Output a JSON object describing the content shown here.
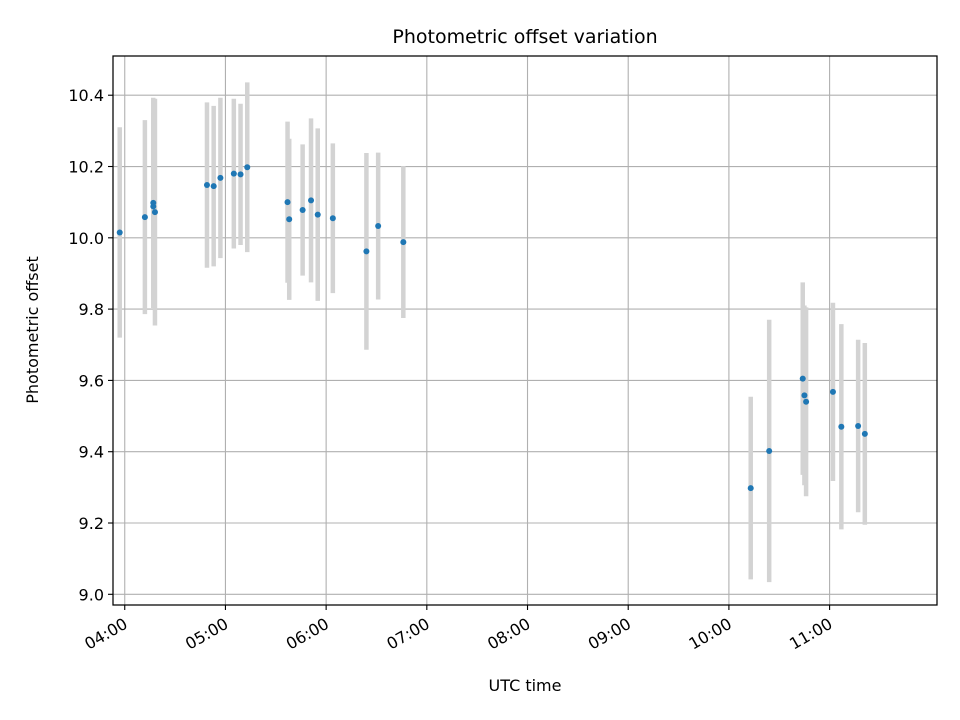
{
  "chart_data": {
    "type": "scatter",
    "title": "Photometric offset variation",
    "xlabel": "UTC time",
    "ylabel": "Photometric offset",
    "x_ticks": [
      "04:00",
      "05:00",
      "06:00",
      "07:00",
      "08:00",
      "09:00",
      "10:00",
      "11:00"
    ],
    "y_ticks": [
      "9.0",
      "9.2",
      "9.4",
      "9.6",
      "9.8",
      "10.0",
      "10.2",
      "10.4"
    ],
    "xlim": [
      "03:53",
      "12:04"
    ],
    "ylim": [
      8.97,
      10.51
    ],
    "grid": true,
    "marker_color": "#1f77b4",
    "errorbar_color": "#d3d3d3",
    "points": [
      {
        "x": "03:57",
        "y": 10.015,
        "err": 0.295
      },
      {
        "x": "04:12",
        "y": 10.058,
        "err": 0.272
      },
      {
        "x": "04:17",
        "y": 10.098,
        "err": 0.295
      },
      {
        "x": "04:17",
        "y": 10.088,
        "err": 0.262
      },
      {
        "x": "04:18",
        "y": 10.072,
        "err": 0.318
      },
      {
        "x": "04:49",
        "y": 10.148,
        "err": 0.232
      },
      {
        "x": "04:53",
        "y": 10.145,
        "err": 0.225
      },
      {
        "x": "04:57",
        "y": 10.168,
        "err": 0.225
      },
      {
        "x": "05:05",
        "y": 10.18,
        "err": 0.21
      },
      {
        "x": "05:09",
        "y": 10.178,
        "err": 0.198
      },
      {
        "x": "05:13",
        "y": 10.198,
        "err": 0.238
      },
      {
        "x": "05:37",
        "y": 10.1,
        "err": 0.226
      },
      {
        "x": "05:38",
        "y": 10.052,
        "err": 0.226
      },
      {
        "x": "05:46",
        "y": 10.078,
        "err": 0.184
      },
      {
        "x": "05:51",
        "y": 10.105,
        "err": 0.23
      },
      {
        "x": "05:55",
        "y": 10.065,
        "err": 0.242
      },
      {
        "x": "06:04",
        "y": 10.055,
        "err": 0.21
      },
      {
        "x": "06:24",
        "y": 9.962,
        "err": 0.276
      },
      {
        "x": "06:31",
        "y": 10.033,
        "err": 0.206
      },
      {
        "x": "06:46",
        "y": 9.988,
        "err": 0.213
      },
      {
        "x": "10:13",
        "y": 9.298,
        "err": 0.256
      },
      {
        "x": "10:24",
        "y": 9.402,
        "err": 0.368
      },
      {
        "x": "10:44",
        "y": 9.605,
        "err": 0.27
      },
      {
        "x": "10:45",
        "y": 9.558,
        "err": 0.252
      },
      {
        "x": "10:46",
        "y": 9.54,
        "err": 0.265
      },
      {
        "x": "11:02",
        "y": 9.568,
        "err": 0.25
      },
      {
        "x": "11:07",
        "y": 9.47,
        "err": 0.288
      },
      {
        "x": "11:17",
        "y": 9.472,
        "err": 0.242
      },
      {
        "x": "11:21",
        "y": 9.45,
        "err": 0.255
      }
    ]
  }
}
